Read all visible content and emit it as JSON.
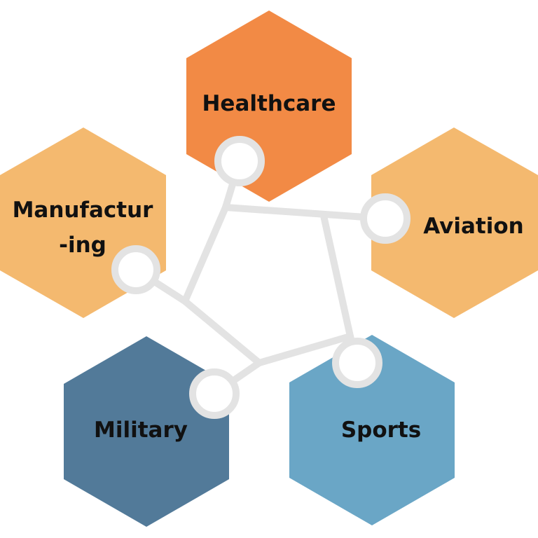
{
  "colors": {
    "healthcare": "#f28a45",
    "manufacturing": "#f4b96f",
    "aviation": "#f4b96f",
    "military": "#527a99",
    "sports": "#6aa6c6",
    "connector": "#e3e3e3"
  },
  "hexagons": {
    "healthcare": {
      "label": "Healthcare"
    },
    "manufacturing": {
      "label_line1": "Manufactur",
      "label_line2": "-ing"
    },
    "aviation": {
      "label": "Aviation"
    },
    "military": {
      "label": "Military"
    },
    "sports": {
      "label": "Sports"
    }
  }
}
